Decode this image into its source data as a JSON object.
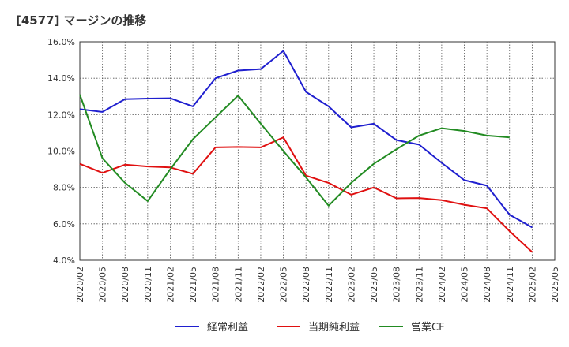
{
  "chart_data": {
    "type": "line",
    "title": "[4577]  マージンの推移",
    "xlabel": "",
    "ylabel": "",
    "x": [
      "2020/02",
      "2020/05",
      "2020/08",
      "2020/11",
      "2021/02",
      "2021/05",
      "2021/08",
      "2021/11",
      "2022/02",
      "2022/05",
      "2022/08",
      "2022/11",
      "2023/02",
      "2023/05",
      "2023/08",
      "2023/11",
      "2024/02",
      "2024/05",
      "2024/08",
      "2024/11",
      "2025/02",
      "2025/05"
    ],
    "ylim": [
      4.0,
      16.0
    ],
    "yticks": [
      "4.0%",
      "6.0%",
      "8.0%",
      "10.0%",
      "12.0%",
      "14.0%",
      "16.0%"
    ],
    "grid": true,
    "legend_position": "bottom",
    "series": [
      {
        "name": "経常利益",
        "color": "#1f1fcf",
        "values": [
          12.3,
          12.15,
          12.85,
          12.88,
          12.9,
          12.45,
          14.0,
          14.42,
          14.5,
          15.5,
          13.25,
          12.45,
          11.3,
          11.5,
          10.6,
          10.35,
          9.35,
          8.4,
          8.1,
          6.5,
          5.8,
          null
        ]
      },
      {
        "name": "当期純利益",
        "color": "#e01010",
        "values": [
          9.3,
          8.8,
          9.25,
          9.15,
          9.1,
          8.75,
          10.2,
          10.22,
          10.2,
          10.75,
          8.65,
          8.25,
          7.6,
          8.0,
          7.4,
          7.42,
          7.3,
          7.05,
          6.85,
          5.6,
          4.45,
          null
        ]
      },
      {
        "name": "営業CF",
        "color": "#228b22",
        "values": [
          13.1,
          9.6,
          8.25,
          7.25,
          9.0,
          10.65,
          11.85,
          13.05,
          11.5,
          10.0,
          8.55,
          7.0,
          8.25,
          9.3,
          10.1,
          10.85,
          11.25,
          11.1,
          10.85,
          10.75,
          null,
          null
        ]
      }
    ]
  }
}
